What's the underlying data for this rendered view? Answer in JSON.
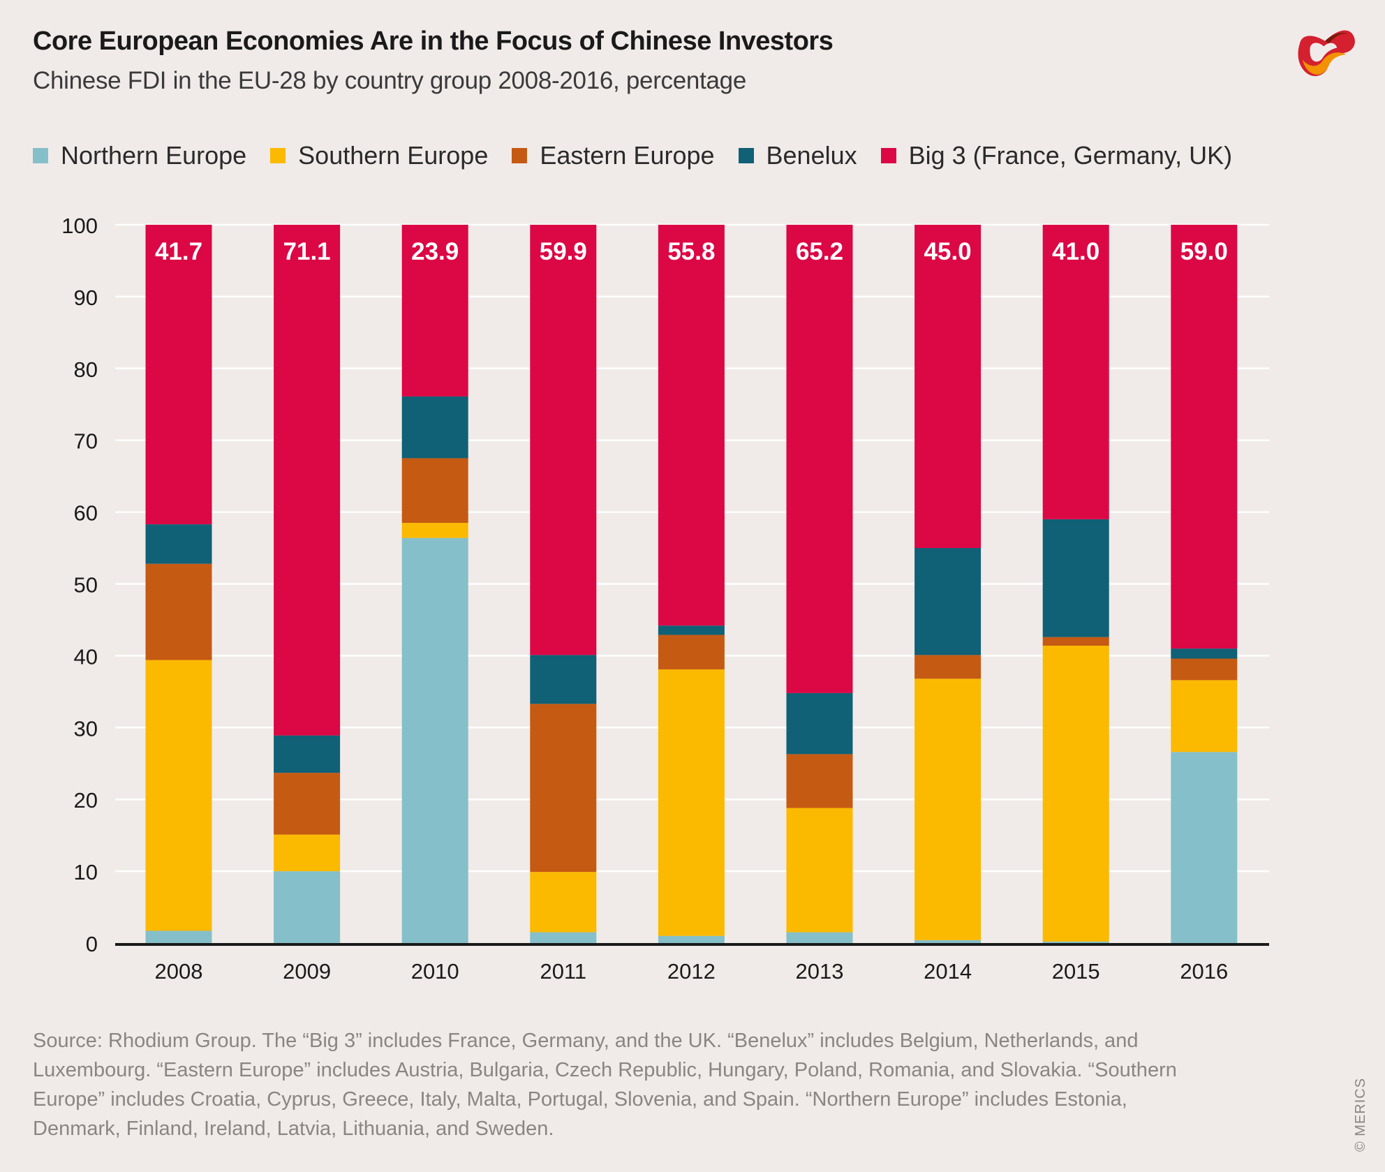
{
  "header": {
    "title": "Core European Economies Are in the Focus of Chinese Investors",
    "subtitle": "Chinese FDI in the EU-28 by country group 2008-2016, percentage",
    "logo_icon": "merics-logo-icon"
  },
  "legend": [
    {
      "label": "Northern Europe",
      "color": "#85bfc9"
    },
    {
      "label": "Southern Europe",
      "color": "#fbb900"
    },
    {
      "label": "Eastern Europe",
      "color": "#c55a13"
    },
    {
      "label": "Benelux",
      "color": "#106076"
    },
    {
      "label": "Big 3 (France, Germany, UK)",
      "color": "#dc0745"
    }
  ],
  "chart_data": {
    "type": "bar",
    "stacked": true,
    "title": "Core European Economies Are in the Focus of Chinese Investors",
    "subtitle": "Chinese FDI in the EU-28 by country group 2008-2016, percentage",
    "xlabel": "",
    "ylabel": "",
    "ylim": [
      0,
      100
    ],
    "yticks": [
      0,
      10,
      20,
      30,
      40,
      50,
      60,
      70,
      80,
      90,
      100
    ],
    "grid": true,
    "legend_position": "top",
    "categories": [
      "2008",
      "2009",
      "2010",
      "2011",
      "2012",
      "2013",
      "2014",
      "2015",
      "2016"
    ],
    "series": [
      {
        "name": "Northern Europe",
        "color": "#85bfc9",
        "values": [
          1.7,
          10.0,
          56.4,
          1.5,
          1.0,
          1.5,
          0.4,
          0.2,
          26.6
        ]
      },
      {
        "name": "Southern Europe",
        "color": "#fbb900",
        "values": [
          37.7,
          5.1,
          2.1,
          8.4,
          37.1,
          17.3,
          36.4,
          41.2,
          10.0
        ]
      },
      {
        "name": "Eastern Europe",
        "color": "#c55a13",
        "values": [
          13.4,
          8.6,
          9.0,
          23.4,
          4.8,
          7.5,
          3.3,
          1.2,
          3.0
        ]
      },
      {
        "name": "Benelux",
        "color": "#106076",
        "values": [
          5.5,
          5.2,
          8.6,
          6.8,
          1.3,
          8.5,
          14.9,
          16.4,
          1.4
        ]
      },
      {
        "name": "Big 3 (France, Germany, UK)",
        "color": "#dc0745",
        "values": [
          41.7,
          71.1,
          23.9,
          59.9,
          55.8,
          65.2,
          45.0,
          41.0,
          59.0
        ]
      }
    ],
    "data_labels": {
      "series": "Big 3 (France, Germany, UK)",
      "labels": [
        "41.7",
        "71.1",
        "23.9",
        "59.9",
        "55.8",
        "65.2",
        "45.0",
        "41.0",
        "59.0"
      ]
    }
  },
  "footnote": "Source: Rhodium Group. The “Big 3” includes France, Germany, and the UK. “Benelux” includes Belgium, Netherlands, and Luxembourg. “Eastern Europe” includes Austria, Bulgaria, Czech Republic, Hungary, Poland, Romania, and Slovakia. “Southern Europe” includes Croatia, Cyprus, Greece, Italy, Malta, Portugal, Slovenia, and Spain. “Northern Europe” includes Estonia, Denmark, Finland, Ireland, Latvia, Lithuania, and Sweden.",
  "copyright": "© MERICS"
}
